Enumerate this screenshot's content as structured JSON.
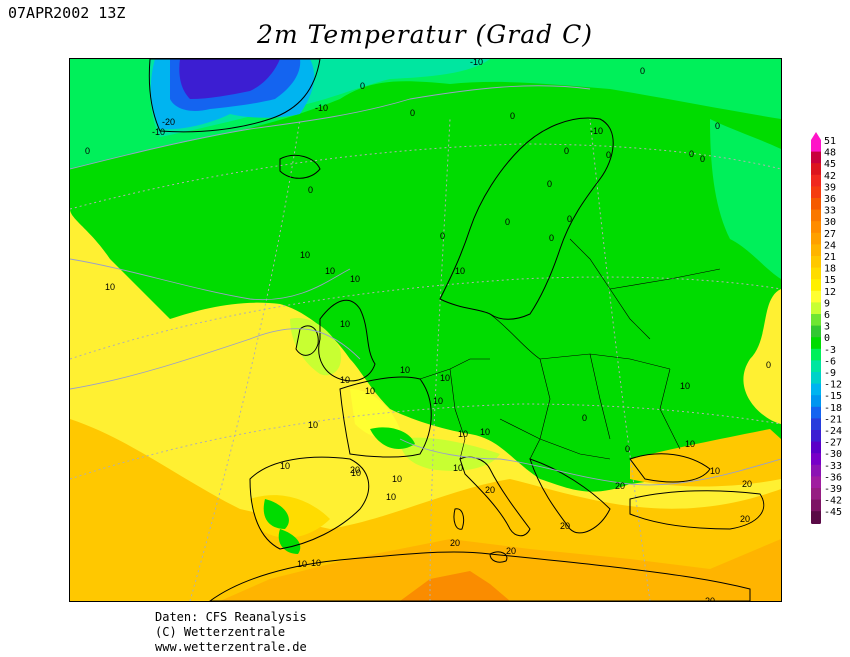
{
  "header": {
    "date": "07APR2002 13Z",
    "title": "2m Temperatur (Grad C)"
  },
  "legend": {
    "values": [
      "51",
      "48",
      "45",
      "42",
      "39",
      "36",
      "33",
      "30",
      "27",
      "24",
      "21",
      "18",
      "15",
      "12",
      "9",
      "6",
      "3",
      "0",
      "-3",
      "-6",
      "-9",
      "-12",
      "-15",
      "-18",
      "-21",
      "-24",
      "-27",
      "-30",
      "-33",
      "-36",
      "-39",
      "-42",
      "-45"
    ],
    "colors": [
      "#ff14c8",
      "#c8003c",
      "#dc141e",
      "#f0281e",
      "#f53c0f",
      "#f55a00",
      "#fa7800",
      "#ff8c00",
      "#ffa000",
      "#ffb400",
      "#ffc800",
      "#ffdc00",
      "#fff000",
      "#ffff32",
      "#c8ff32",
      "#6ee632",
      "#32c832",
      "#00dc00",
      "#00f05a",
      "#00e6a0",
      "#00d2c8",
      "#00b4f0",
      "#0096f0",
      "#1464f0",
      "#283cdc",
      "#3c1ed2",
      "#5a00c8",
      "#7800c8",
      "#8c14b4",
      "#a01ea0",
      "#961e82",
      "#7d1464",
      "#5a0a46"
    ]
  },
  "contour_labels": [
    "-10",
    "0",
    "0",
    "0",
    "-10",
    "-20",
    "-10",
    "0",
    "0",
    "-10",
    "0",
    "0",
    "0",
    "0",
    "0",
    "0",
    "0",
    "0",
    "0",
    "0",
    "0",
    "10",
    "10",
    "10",
    "10",
    "10",
    "10",
    "10",
    "10",
    "10",
    "10",
    "10",
    "10",
    "10",
    "10",
    "10",
    "10",
    "10",
    "10",
    "10",
    "10",
    "10",
    "10",
    "10",
    "10",
    "0",
    "0",
    "0",
    "20",
    "20",
    "20",
    "20",
    "20",
    "20",
    "20",
    "20",
    "20"
  ],
  "credits": {
    "line1": "Daten: CFS Reanalysis",
    "line2": "(C) Wetterzentrale",
    "line3": "www.wetterzentrale.de"
  }
}
